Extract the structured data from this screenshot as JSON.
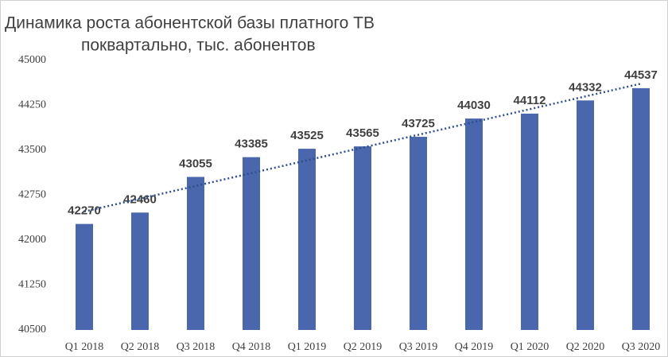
{
  "chart_data": {
    "type": "bar",
    "title": "Динамика роста абонентской базы платного ТВ",
    "subtitle": "поквартально, тыс. абонентов",
    "categories": [
      "Q1 2018",
      "Q2 2018",
      "Q3 2018",
      "Q4 2018",
      "Q1 2019",
      "Q2 2019",
      "Q3 2019",
      "Q4 2019",
      "Q1 2020",
      "Q2 2020",
      "Q3 2020"
    ],
    "values": [
      42270,
      42460,
      43055,
      43385,
      43525,
      43565,
      43725,
      44030,
      44112,
      44332,
      44537
    ],
    "color": "#4a66ac",
    "ylim": [
      40500,
      45000
    ],
    "yticks": [
      40500,
      41250,
      42000,
      42750,
      43500,
      44250,
      45000
    ],
    "grid": false,
    "trendline": true,
    "trendline_color": "#2f4f91"
  }
}
